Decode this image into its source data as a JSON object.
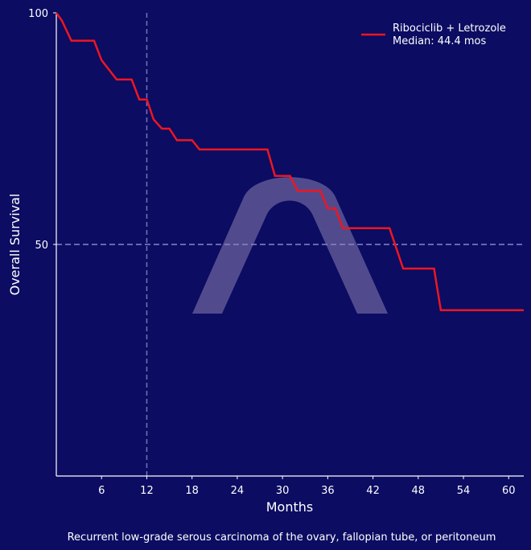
{
  "colors": {
    "background": "#0b0c62",
    "curve": "#ee1620",
    "axis": "#ffffff",
    "reference_line": "#6e6fb4",
    "watermark": "#5e5796"
  },
  "chart_data": {
    "type": "line",
    "subtype": "kaplan-meier step curve",
    "title": "",
    "xlabel": "Months",
    "ylabel": "Overall Survival",
    "xlim": [
      0,
      62
    ],
    "ylim": [
      0,
      100
    ],
    "x_ticks": [
      6,
      12,
      18,
      24,
      30,
      36,
      42,
      48,
      54,
      60
    ],
    "y_ticks": [
      100,
      50
    ],
    "grid": false,
    "reference_lines": [
      {
        "orientation": "vertical",
        "x": 12,
        "style": "dashed"
      },
      {
        "orientation": "horizontal",
        "y": 50,
        "style": "dashed"
      }
    ],
    "legend": {
      "position": "upper right",
      "entries": [
        {
          "label_line1": "Ribociclib + Letrozole",
          "label_line2": "Median: 44.4 mos"
        }
      ]
    },
    "series": [
      {
        "name": "Ribociclib + Letrozole",
        "median_os_months": 44.4,
        "points": [
          [
            0,
            100
          ],
          [
            0.75,
            98.3
          ],
          [
            2,
            94
          ],
          [
            5,
            94
          ],
          [
            6,
            89.8
          ],
          [
            8,
            85.6
          ],
          [
            10,
            85.6
          ],
          [
            11,
            81.3
          ],
          [
            12,
            81.3
          ],
          [
            12.9,
            77
          ],
          [
            14,
            75
          ],
          [
            15,
            75
          ],
          [
            16,
            72.5
          ],
          [
            18,
            72.5
          ],
          [
            19,
            70.5
          ],
          [
            28,
            70.5
          ],
          [
            29,
            64.8
          ],
          [
            31,
            64.8
          ],
          [
            32,
            61.6
          ],
          [
            35,
            61.6
          ],
          [
            36,
            57.8
          ],
          [
            37,
            57.8
          ],
          [
            38,
            53.5
          ],
          [
            44.2,
            53.5
          ],
          [
            46,
            44.8
          ],
          [
            50.1,
            44.8
          ],
          [
            51,
            35.8
          ],
          [
            62,
            35.8
          ]
        ]
      }
    ],
    "annotations": [
      "Recurrent low-grade serous carcinoma of the ovary, fallopian tube, or peritoneum"
    ]
  },
  "labels": {
    "xlabel": "Months",
    "ylabel": "Overall Survival",
    "legend_line1": "Ribociclib + Letrozole",
    "legend_line2": "Median: 44.4 mos",
    "footnote": "Recurrent low-grade serous carcinoma of the ovary, fallopian tube, or peritoneum",
    "ytick_100": "100",
    "ytick_50": "50"
  }
}
